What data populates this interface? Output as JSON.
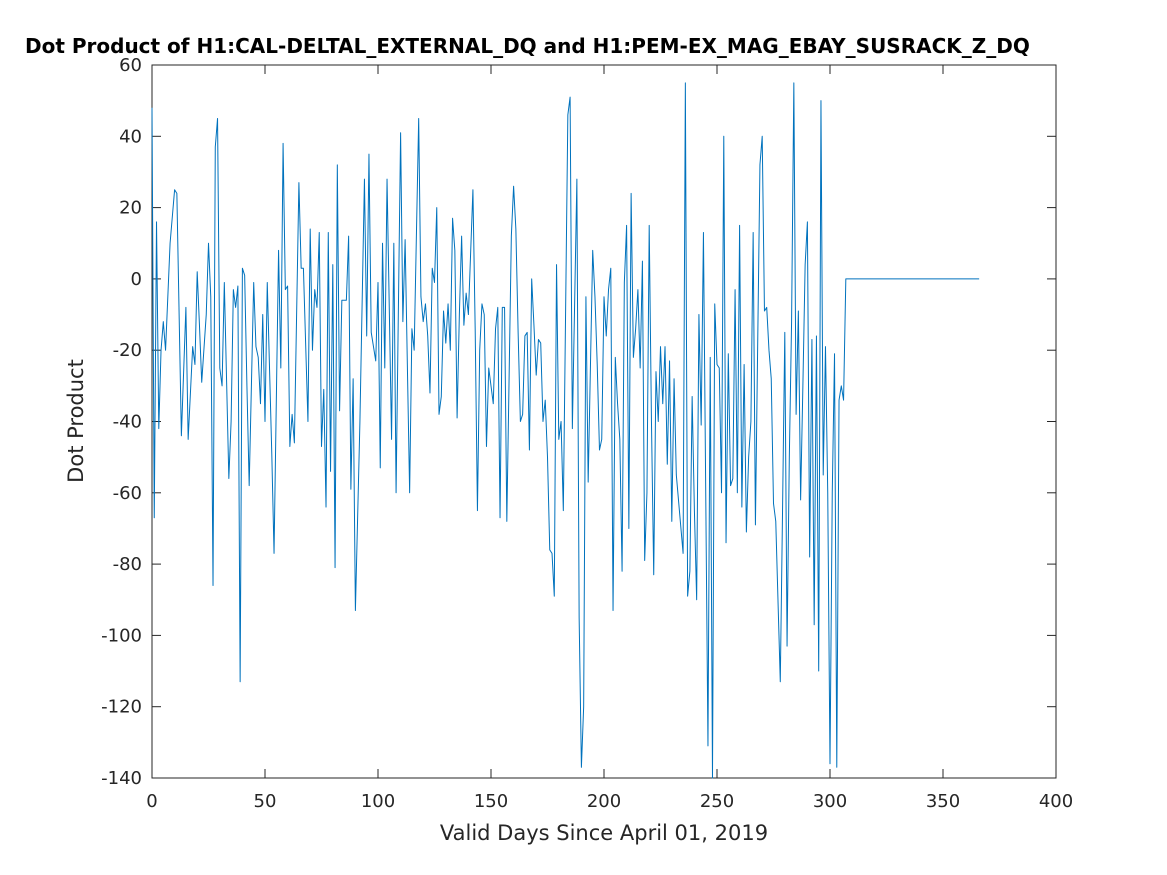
{
  "chart_data": {
    "type": "line",
    "title": "Dot Product of H1:CAL-DELTAL_EXTERNAL_DQ and H1:PEM-EX_MAG_EBAY_SUSRACK_Z_DQ",
    "xlabel": "Valid Days Since April 01, 2019",
    "ylabel": "Dot Product",
    "xlim": [
      0,
      400
    ],
    "xticks": [
      0,
      50,
      100,
      150,
      200,
      250,
      300,
      350,
      400
    ],
    "ylim": [
      -140,
      60
    ],
    "yticks": [
      -140,
      -120,
      -100,
      -80,
      -60,
      -40,
      -20,
      0,
      20,
      40,
      60
    ],
    "x": [
      0,
      1,
      2,
      3,
      4,
      5,
      6,
      8,
      10,
      11,
      13,
      15,
      16,
      18,
      19,
      20,
      21,
      22,
      24,
      25,
      26,
      27,
      28,
      29,
      30,
      31,
      32,
      34,
      35,
      36,
      37,
      38,
      39,
      40,
      41,
      42,
      43,
      45,
      46,
      47,
      48,
      49,
      50,
      51,
      53,
      54,
      56,
      57,
      58,
      59,
      60,
      61,
      62,
      63,
      65,
      66,
      67,
      69,
      70,
      71,
      72,
      73,
      74,
      75,
      76,
      77,
      78,
      79,
      80,
      81,
      82,
      83,
      84,
      86,
      87,
      88,
      89,
      90,
      92,
      94,
      95,
      96,
      97,
      99,
      100,
      101,
      102,
      103,
      104,
      106,
      107,
      108,
      110,
      111,
      112,
      114,
      115,
      116,
      118,
      119,
      120,
      121,
      122,
      123,
      124,
      125,
      126,
      127,
      128,
      129,
      130,
      131,
      132,
      133,
      134,
      135,
      136,
      137,
      138,
      139,
      140,
      142,
      143,
      144,
      145,
      146,
      147,
      148,
      149,
      150,
      151,
      152,
      153,
      154,
      155,
      156,
      157,
      159,
      160,
      161,
      162,
      163,
      164,
      165,
      166,
      167,
      168,
      169,
      170,
      171,
      172,
      173,
      174,
      175,
      176,
      177,
      178,
      179,
      180,
      181,
      182,
      184,
      185,
      186,
      188,
      189,
      190,
      191,
      192,
      193,
      195,
      196,
      197,
      198,
      199,
      200,
      201,
      202,
      203,
      204,
      205,
      206,
      207,
      208,
      209,
      210,
      211,
      212,
      213,
      214,
      215,
      216,
      217,
      218,
      219,
      220,
      221,
      222,
      223,
      224,
      225,
      226,
      227,
      228,
      229,
      230,
      231,
      232,
      235,
      236,
      237,
      238,
      239,
      240,
      241,
      242,
      243,
      244,
      246,
      247,
      248,
      249,
      250,
      251,
      252,
      253,
      254,
      255,
      256,
      257,
      258,
      259,
      260,
      261,
      262,
      263,
      264,
      265,
      266,
      267,
      269,
      270,
      271,
      272,
      273,
      274,
      275,
      276,
      278,
      279,
      280,
      281,
      282,
      283,
      284,
      285,
      286,
      287,
      288,
      289,
      290,
      291,
      292,
      293,
      294,
      295,
      296,
      297,
      298,
      299,
      300,
      301,
      302,
      303,
      304,
      305,
      306,
      307,
      366
    ],
    "series": [
      {
        "color": "#0072bd",
        "values": [
          48,
          -67,
          16,
          -42,
          -20,
          -12,
          -20,
          10,
          25,
          24,
          -44,
          -8,
          -45,
          -19,
          -24,
          2,
          -13,
          -29,
          -10,
          10,
          -5,
          -86,
          37,
          45,
          -25,
          -30,
          -1,
          -56,
          -40,
          -3,
          -8,
          -2,
          -113,
          3,
          1,
          -30,
          -58,
          -1,
          -19,
          -22,
          -35,
          -10,
          -40,
          -1,
          -49,
          -77,
          8,
          -25,
          38,
          -3,
          -2,
          -47,
          -38,
          -46,
          27,
          3,
          3,
          -40,
          14,
          -20,
          -3,
          -8,
          13,
          -47,
          -31,
          -64,
          13,
          -54,
          4,
          -81,
          32,
          -37,
          -6,
          -6,
          12,
          -59,
          -28,
          -93,
          -40,
          28,
          -16,
          35,
          -15,
          -23,
          -1,
          -53,
          10,
          -25,
          28,
          -45,
          10,
          -60,
          41,
          -12,
          11,
          -60,
          -14,
          -20,
          45,
          -5,
          -12,
          -7,
          -16,
          -32,
          3,
          -1,
          20,
          -38,
          -33,
          -9,
          -18,
          -7,
          -20,
          17,
          8,
          -39,
          -10,
          12,
          -13,
          -4,
          -10,
          25,
          -14,
          -65,
          -20,
          -7,
          -10,
          -47,
          -25,
          -30,
          -35,
          -14,
          -8,
          -67,
          -8,
          -8,
          -68,
          12,
          26,
          14,
          -15,
          -40,
          -38,
          -16,
          -15,
          -48,
          0,
          -13,
          -27,
          -17,
          -18,
          -40,
          -34,
          -50,
          -76,
          -77,
          -89,
          4,
          -45,
          -40,
          -65,
          46,
          51,
          -42,
          28,
          -95,
          -137,
          -120,
          -5,
          -57,
          8,
          -5,
          -24,
          -48,
          -45,
          -5,
          -16,
          -3,
          3,
          -93,
          -22,
          -35,
          -45,
          -82,
          -1,
          15,
          -70,
          24,
          -22,
          -14,
          -3,
          -25,
          5,
          -79,
          -60,
          15,
          -40,
          -83,
          -26,
          -40,
          -19,
          -35,
          -19,
          -52,
          -23,
          -68,
          -28,
          -55,
          -77,
          55,
          -89,
          -82,
          -33,
          -65,
          -90,
          -10,
          -41,
          13,
          -131,
          -22,
          -140,
          -7,
          -24,
          -25,
          -60,
          40,
          -74,
          -21,
          -58,
          -56,
          -3,
          -60,
          15,
          -64,
          -24,
          -71,
          -50,
          -40,
          13,
          -69,
          32,
          40,
          -9,
          -8,
          -20,
          -28,
          -63,
          -68,
          -113,
          -65,
          -15,
          -103,
          -50,
          -12,
          55,
          -38,
          -9,
          -62,
          -30,
          4,
          16,
          -78,
          -17,
          -97,
          -16,
          -110,
          50,
          -55,
          -19,
          -60,
          -136,
          -60,
          -21,
          -137,
          -34,
          -30,
          -34,
          0,
          0
        ]
      }
    ]
  }
}
